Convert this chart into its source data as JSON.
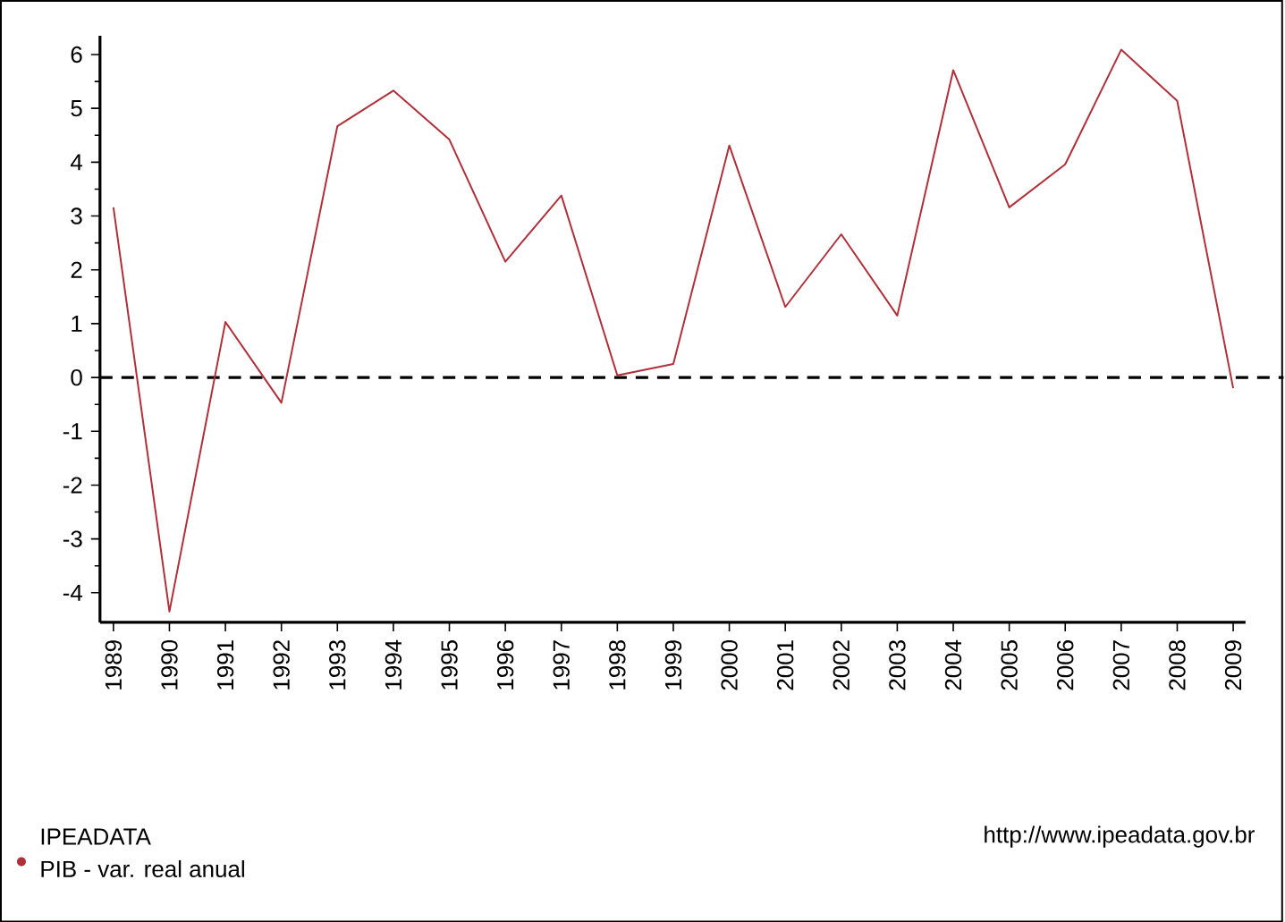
{
  "chart_data": {
    "type": "line",
    "categories": [
      "1989",
      "1990",
      "1991",
      "1992",
      "1993",
      "1994",
      "1995",
      "1996",
      "1997",
      "1998",
      "1999",
      "2000",
      "2001",
      "2002",
      "2003",
      "2004",
      "2005",
      "2006",
      "2007",
      "2008",
      "2009"
    ],
    "series": [
      {
        "name": "PIB - var. real anual",
        "color": "#b0303a",
        "values": [
          3.16,
          -4.35,
          1.03,
          -0.47,
          4.67,
          5.33,
          4.42,
          2.15,
          3.38,
          0.04,
          0.25,
          4.31,
          1.31,
          2.66,
          1.15,
          5.71,
          3.16,
          3.96,
          6.09,
          5.14,
          -0.2
        ]
      }
    ],
    "ylim": [
      -4.55,
      6.35
    ],
    "yticks": [
      -4,
      -3,
      -2,
      -1,
      0,
      1,
      2,
      3,
      4,
      5,
      6
    ],
    "ref_lines": [
      {
        "axis": "y",
        "value": 0,
        "color": "#000000",
        "line_style": "dashed"
      }
    ],
    "legend": "bottom left",
    "legend_title": "IPEADATA",
    "annotations": [
      "http://www.ipeadata.gov.br"
    ],
    "grid": false,
    "marker": "none",
    "line_style": "solid"
  }
}
